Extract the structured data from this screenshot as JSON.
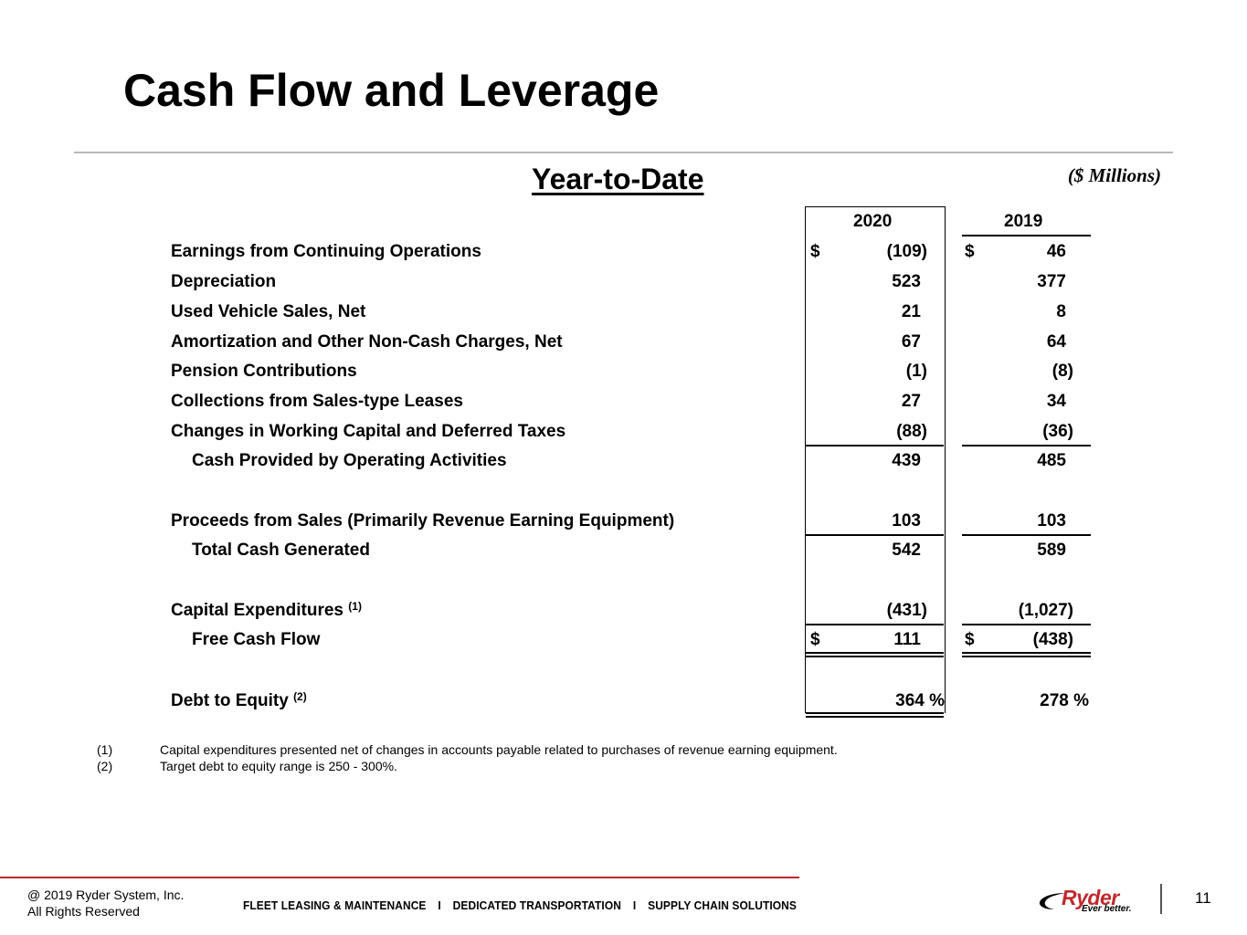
{
  "header": {
    "title": "Cash Flow and Leverage",
    "subtitle": "Year-to-Date",
    "units": "($ Millions)"
  },
  "columns": [
    "2020",
    "2019"
  ],
  "rows": [
    {
      "label": "Earnings from Continuing Operations",
      "v2020": "(109)",
      "v2019": "46",
      "dollar": true
    },
    {
      "label": "Depreciation",
      "v2020": "523",
      "v2019": "377"
    },
    {
      "label": "Used Vehicle Sales, Net",
      "v2020": "21",
      "v2019": "8"
    },
    {
      "label": "Amortization and Other Non-Cash Charges, Net",
      "v2020": "67",
      "v2019": "64"
    },
    {
      "label": "Pension Contributions",
      "v2020": "(1)",
      "v2019": "(8)"
    },
    {
      "label": "Collections from Sales-type Leases",
      "v2020": "27",
      "v2019": "34"
    },
    {
      "label": "Changes in Working Capital and Deferred Taxes",
      "v2020": "(88)",
      "v2019": "(36)"
    },
    {
      "label": "Cash Provided by Operating Activities",
      "v2020": "439",
      "v2019": "485"
    },
    {
      "label": "Proceeds from Sales (Primarily Revenue Earning Equipment)",
      "v2020": "103",
      "v2019": "103"
    },
    {
      "label": "Total Cash Generated",
      "v2020": "542",
      "v2019": "589"
    },
    {
      "label": "Capital Expenditures",
      "sup": "(1)",
      "v2020": "(431)",
      "v2019": "(1,027)"
    },
    {
      "label": "Free Cash Flow",
      "v2020": "111",
      "v2019": "(438)",
      "dollar": true
    },
    {
      "label": "Debt to Equity",
      "sup": "(2)",
      "v2020": "364 %",
      "v2019": "278 %"
    }
  ],
  "currency_symbol": "$",
  "footnotes": [
    {
      "num": "(1)",
      "text": "Capital expenditures presented net of changes in accounts payable related to purchases of revenue earning equipment."
    },
    {
      "num": "(2)",
      "text": "Target debt to equity range is 250 - 300%."
    }
  ],
  "footer": {
    "copyright_line1": "@ 2019 Ryder System, Inc.",
    "copyright_line2": "All Rights Reserved",
    "tagline": [
      "FLEET LEASING & MAINTENANCE",
      "DEDICATED TRANSPORTATION",
      "SUPPLY CHAIN SOLUTIONS"
    ],
    "tagline_separator": "I",
    "logo_text": "Ryder",
    "logo_tagline": "Ever better.",
    "page_number": "11"
  },
  "colors": {
    "accent_red": "#c0282d",
    "rule_gray": "#b9b9b9"
  }
}
